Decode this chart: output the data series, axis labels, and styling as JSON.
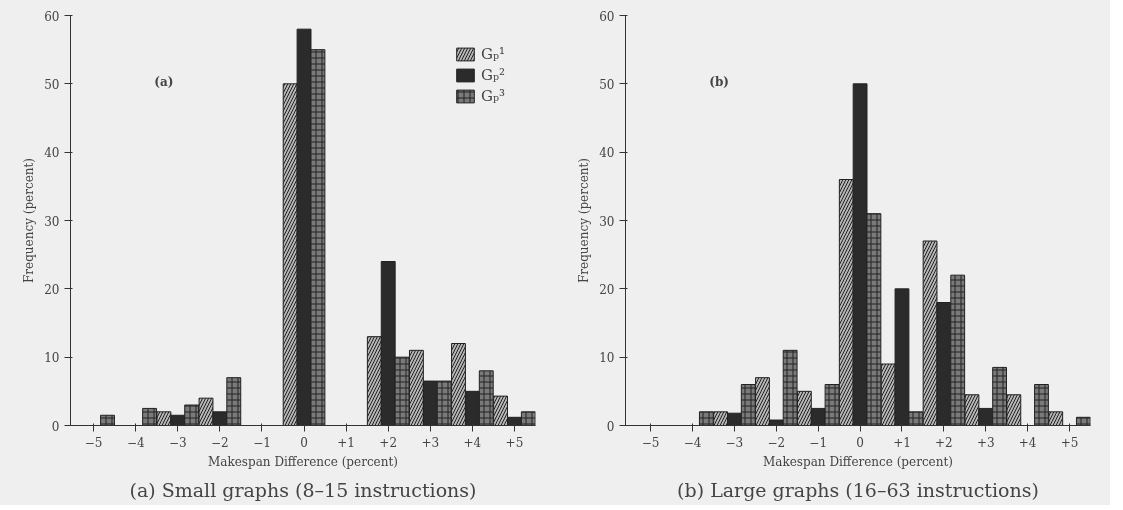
{
  "chart_data": [
    {
      "type": "bar",
      "xlabel": "Makespan Difference (percent)",
      "ylabel": "Frequency (percent)",
      "annotations": [
        "(a)",
        "(a) Small graphs (8–15 instructions)"
      ],
      "legend": "top right",
      "x": [
        -5,
        -4,
        -3,
        -2,
        -1,
        0,
        1,
        2,
        3,
        4,
        5
      ],
      "xlim": [
        -5.55,
        5.5
      ],
      "ylim": [
        0,
        60
      ],
      "xticks": [
        {
          "value": -5,
          "label": "−5"
        },
        {
          "value": -4,
          "label": "−4"
        },
        {
          "value": -3,
          "label": "−3"
        },
        {
          "value": -2,
          "label": "−2"
        },
        {
          "value": -1,
          "label": "−1"
        },
        0,
        {
          "value": 1,
          "label": "+1"
        },
        {
          "value": 2,
          "label": "+2"
        },
        {
          "value": 3,
          "label": "+3"
        },
        {
          "value": 4,
          "label": "+4"
        },
        {
          "value": 5,
          "label": "+5"
        }
      ],
      "yticks": [
        0,
        10,
        20,
        30,
        40,
        50,
        60
      ],
      "series": [
        {
          "name": "Gₚ¹",
          "color": "#b5b5b5",
          "values": [
            null,
            null,
            2,
            4,
            null,
            50,
            null,
            13,
            11,
            12,
            4.3
          ]
        },
        {
          "name": "Gₚ²",
          "color": "#2b2b2b",
          "values": [
            null,
            null,
            1.5,
            2,
            null,
            58,
            null,
            24,
            6.5,
            5,
            1.2
          ]
        },
        {
          "name": "Gₚ³",
          "color": "#7a7a7a",
          "values": [
            1.5,
            2.5,
            3,
            7,
            null,
            55,
            null,
            10,
            6.5,
            8,
            2
          ]
        }
      ]
    },
    {
      "type": "bar",
      "xlabel": "Makespan Difference (percent)",
      "ylabel": "Frequency (percent)",
      "annotations": [
        "(b)",
        "(b) Large graphs (16–63 instructions)"
      ],
      "x": [
        -4,
        -3,
        -2,
        -1,
        0,
        1,
        2,
        3,
        4,
        5
      ],
      "xlim": [
        -5.6,
        5.5
      ],
      "ylim": [
        0,
        60
      ],
      "xticks": [
        {
          "value": -5,
          "label": "−5"
        },
        {
          "value": -4,
          "label": "−4"
        },
        {
          "value": -3,
          "label": "−3"
        },
        {
          "value": -2,
          "label": "−2"
        },
        {
          "value": -1,
          "label": "−1"
        },
        0,
        {
          "value": 1,
          "label": "+1"
        },
        {
          "value": 2,
          "label": "+2"
        },
        {
          "value": 3,
          "label": "+3"
        },
        {
          "value": 4,
          "label": "+4"
        },
        {
          "value": 5,
          "label": "+5"
        }
      ],
      "yticks": [
        0,
        10,
        20,
        30,
        40,
        50,
        60
      ],
      "series": [
        {
          "color": "#b5b5b5",
          "values": [
            null,
            2,
            7,
            5,
            36,
            9,
            27,
            4.5,
            4.5,
            2
          ]
        },
        {
          "color": "#2b2b2b",
          "values": [
            null,
            1.8,
            0.8,
            2.5,
            50,
            20,
            18,
            2.5,
            null,
            null
          ]
        },
        {
          "color": "#7a7a7a",
          "values": [
            2,
            6,
            11,
            6,
            31,
            2,
            22,
            8.5,
            6,
            1.2
          ]
        }
      ]
    }
  ]
}
